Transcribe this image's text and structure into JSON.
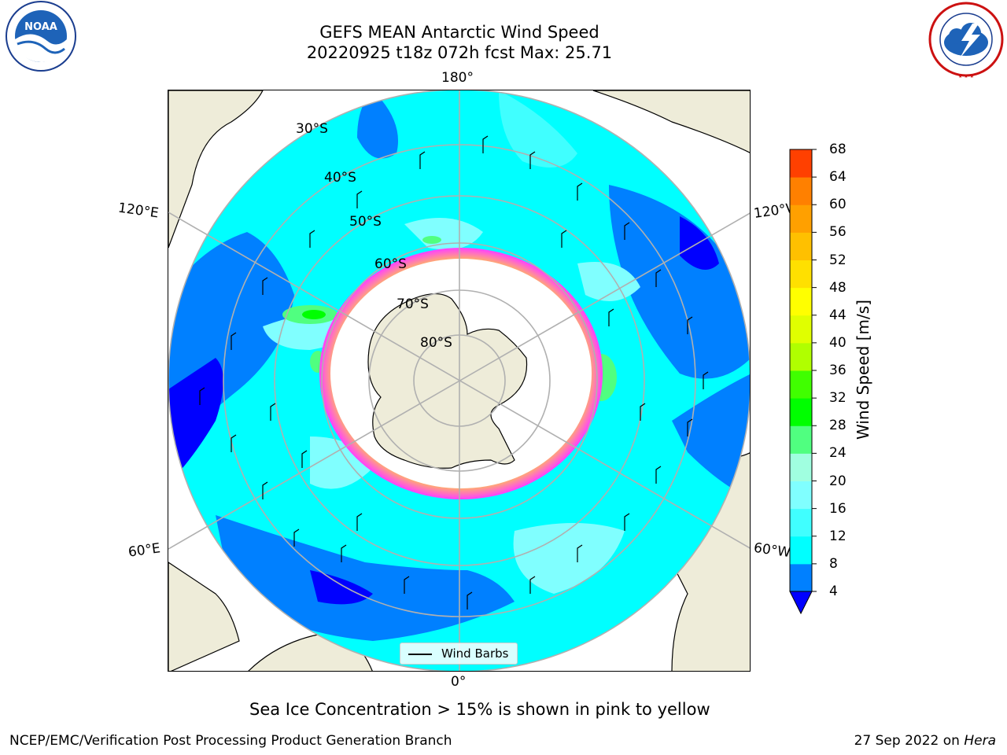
{
  "header": {
    "title_line1": "GEFS MEAN Antarctic Wind Speed",
    "title_line2": "20220925 t18z 072h fcst   Max: 25.71"
  },
  "logos": {
    "noaa": {
      "text": "NOAA",
      "ring_text": "NATIONAL OCEANIC AND ATMOSPHERIC ADMINISTRATION · U.S. DEPARTMENT OF COMMERCE"
    },
    "nws": {
      "ring_text": "NATIONAL WEATHER SERVICE"
    }
  },
  "map": {
    "projection": "south-polar-stereographic",
    "longitude_labels": {
      "top": "180°",
      "bottom": "0°",
      "upper_left": "120°E",
      "lower_left": "60°E",
      "upper_right": "120°W",
      "lower_right": "60°W"
    },
    "latitude_labels": [
      "30°S",
      "40°S",
      "50°S",
      "60°S",
      "70°S",
      "80°S"
    ],
    "legend_label": "Wind Barbs",
    "colors": {
      "land": "#eeecd9",
      "sea_ice_low": "#ff40ff",
      "sea_ice_high": "#ffd040",
      "background_wind": "#00ffff"
    }
  },
  "colorbar": {
    "label": "Wind Speed [m/s]",
    "ticks": [
      "4",
      "8",
      "12",
      "16",
      "20",
      "24",
      "28",
      "32",
      "36",
      "40",
      "44",
      "48",
      "52",
      "56",
      "60",
      "64",
      "68"
    ],
    "colors": [
      "#0080ff",
      "#00ffff",
      "#40ffff",
      "#80ffff",
      "#a0ffe0",
      "#50ff80",
      "#00ff00",
      "#40ff00",
      "#b0ff00",
      "#e0ff00",
      "#ffff00",
      "#ffe000",
      "#ffc000",
      "#ffa000",
      "#ff8000",
      "#ff4000",
      "#ff0000"
    ],
    "under_color": "#0000ff"
  },
  "notes": {
    "sea_ice": "Sea Ice Concentration > 15% is shown in pink to yellow"
  },
  "footer": {
    "left": "NCEP/EMC/Verification Post Processing Product Generation Branch",
    "right_date": "27 Sep 2022 on",
    "right_machine": "Hera"
  }
}
